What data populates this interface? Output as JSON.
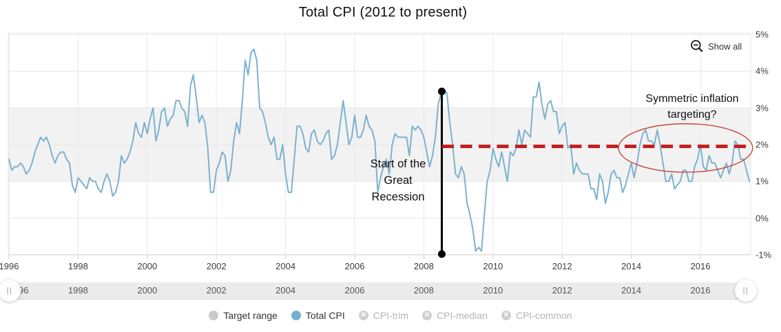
{
  "title": "Total CPI (2012 to present)",
  "toolbar": {
    "show_all_label": "Show all"
  },
  "annotations": {
    "recession_lines": [
      "Start of the",
      "Great",
      "Recession"
    ],
    "targeting_lines": [
      "Symmetric inflation",
      "targeting?"
    ]
  },
  "legend": {
    "items": [
      {
        "label": "Target range",
        "swatch": "gray-circle",
        "enabled": true
      },
      {
        "label": "Total CPI",
        "swatch": "blue-circle",
        "enabled": true
      },
      {
        "label": "CPI-trim",
        "swatch": "disabled-x",
        "enabled": false
      },
      {
        "label": "CPI-median",
        "swatch": "disabled-x",
        "enabled": false
      },
      {
        "label": "CPI-common",
        "swatch": "disabled-x",
        "enabled": false
      }
    ]
  },
  "colors": {
    "series_blue": "#7cb1cf",
    "band_gray": "#f2f2f2",
    "grid": "#e6e6e6",
    "axis_line": "#cccccc",
    "reference_red": "#c21f1f",
    "ellipse_red": "#c5453c",
    "marker_black": "#000000",
    "legend_gray_swatch": "#cacaca",
    "legend_blue_swatch": "#73b0d2",
    "legend_disabled_swatch": "#cfcfcf"
  },
  "chart_data": {
    "type": "line",
    "title": "Total CPI (2012 to present)",
    "y_axis": {
      "position": "right",
      "min": -1,
      "max": 5,
      "tick_interval": 1,
      "values": [
        5,
        4,
        3,
        2,
        1,
        0,
        -1
      ],
      "labels": [
        "5%",
        "4%",
        "3%",
        "2%",
        "1%",
        "0%",
        "-1%"
      ]
    },
    "x_axis": {
      "tick_years": [
        1996,
        1998,
        2000,
        2002,
        2004,
        2006,
        2008,
        2010,
        2012,
        2014,
        2016
      ]
    },
    "navigator_labels": [
      "96",
      "1998",
      "2000",
      "2002",
      "2004",
      "2006",
      "2008",
      "2010",
      "2012",
      "2014",
      "2016"
    ],
    "target_band": {
      "name": "Target range",
      "from": 1,
      "to": 3
    },
    "reference_line": {
      "value": 2,
      "style": "dashed",
      "from_year": 2008.53,
      "to_year": 2017.42
    },
    "recession_marker": {
      "year": 2008.52,
      "top_value": 3.45,
      "bottom_value": -0.98
    },
    "ellipse_annotation": {
      "center_year": 2015.57,
      "center_value": 1.91,
      "rx_years": 1.94,
      "ry_percent": 0.66
    },
    "series": [
      {
        "name": "Total CPI",
        "start": "1996-01",
        "end": "2017-06",
        "interval": "monthly",
        "unit": "% y/y",
        "values": [
          1.6,
          1.3,
          1.4,
          1.4,
          1.5,
          1.4,
          1.2,
          1.3,
          1.5,
          1.8,
          2.0,
          2.2,
          2.1,
          2.2,
          2.0,
          1.7,
          1.5,
          1.7,
          1.8,
          1.8,
          1.6,
          1.5,
          0.9,
          0.7,
          1.1,
          1.0,
          0.9,
          0.8,
          1.1,
          1.0,
          1.0,
          0.8,
          0.7,
          1.0,
          1.2,
          1.0,
          0.6,
          0.7,
          1.0,
          1.7,
          1.5,
          1.6,
          1.8,
          2.1,
          2.6,
          2.3,
          2.2,
          2.6,
          2.3,
          2.7,
          3.0,
          2.1,
          2.4,
          2.9,
          3.0,
          2.5,
          2.7,
          2.8,
          3.2,
          3.2,
          3.0,
          2.9,
          2.5,
          3.6,
          3.9,
          3.3,
          2.6,
          2.8,
          2.6,
          1.9,
          0.7,
          0.7,
          1.3,
          1.5,
          1.8,
          1.7,
          1.0,
          1.3,
          2.1,
          2.6,
          2.3,
          3.2,
          4.3,
          3.9,
          4.5,
          4.6,
          4.3,
          3.0,
          2.9,
          2.6,
          2.2,
          2.0,
          2.2,
          1.6,
          1.6,
          2.0,
          1.2,
          0.7,
          0.7,
          1.6,
          2.5,
          2.5,
          2.3,
          1.9,
          1.8,
          2.3,
          2.4,
          2.1,
          2.0,
          2.1,
          2.3,
          2.4,
          1.6,
          1.7,
          2.0,
          2.6,
          3.2,
          2.6,
          2.0,
          2.2,
          2.8,
          2.2,
          2.2,
          2.4,
          2.8,
          2.5,
          2.4,
          2.1,
          0.7,
          1.1,
          1.4,
          1.6,
          1.2,
          2.0,
          2.3,
          2.2,
          2.2,
          2.2,
          2.2,
          1.7,
          2.5,
          2.4,
          2.5,
          2.4,
          2.2,
          1.8,
          1.4,
          1.7,
          2.2,
          3.1,
          3.4,
          3.5,
          3.4,
          2.6,
          2.0,
          1.2,
          1.1,
          1.4,
          1.2,
          0.4,
          0.1,
          -0.3,
          -0.9,
          -0.8,
          -0.9,
          0.1,
          1.0,
          1.3,
          1.9,
          1.6,
          1.4,
          1.8,
          1.4,
          1.0,
          1.8,
          1.7,
          1.9,
          2.4,
          2.0,
          2.4,
          2.3,
          2.2,
          3.3,
          3.3,
          3.7,
          3.1,
          2.7,
          3.1,
          3.2,
          2.9,
          2.9,
          2.3,
          2.5,
          2.6,
          1.9,
          2.0,
          1.2,
          1.5,
          1.3,
          1.2,
          1.2,
          1.2,
          0.8,
          0.8,
          0.5,
          1.2,
          1.0,
          0.4,
          0.7,
          1.2,
          1.3,
          1.1,
          1.1,
          0.7,
          0.9,
          1.2,
          1.5,
          1.1,
          1.5,
          2.0,
          2.3,
          2.4,
          2.1,
          2.1,
          2.0,
          2.4,
          2.0,
          1.5,
          1.0,
          1.0,
          1.2,
          0.8,
          0.9,
          1.0,
          1.3,
          1.3,
          1.0,
          1.0,
          1.4,
          1.6,
          2.0,
          1.4,
          1.3,
          1.7,
          1.5,
          1.5,
          1.3,
          1.1,
          1.3,
          1.5,
          1.2,
          1.5,
          2.1,
          2.0,
          1.6,
          1.6,
          1.3,
          1.0
        ]
      }
    ]
  },
  "navigator": {
    "left_handle": "||",
    "right_handle": "||"
  }
}
